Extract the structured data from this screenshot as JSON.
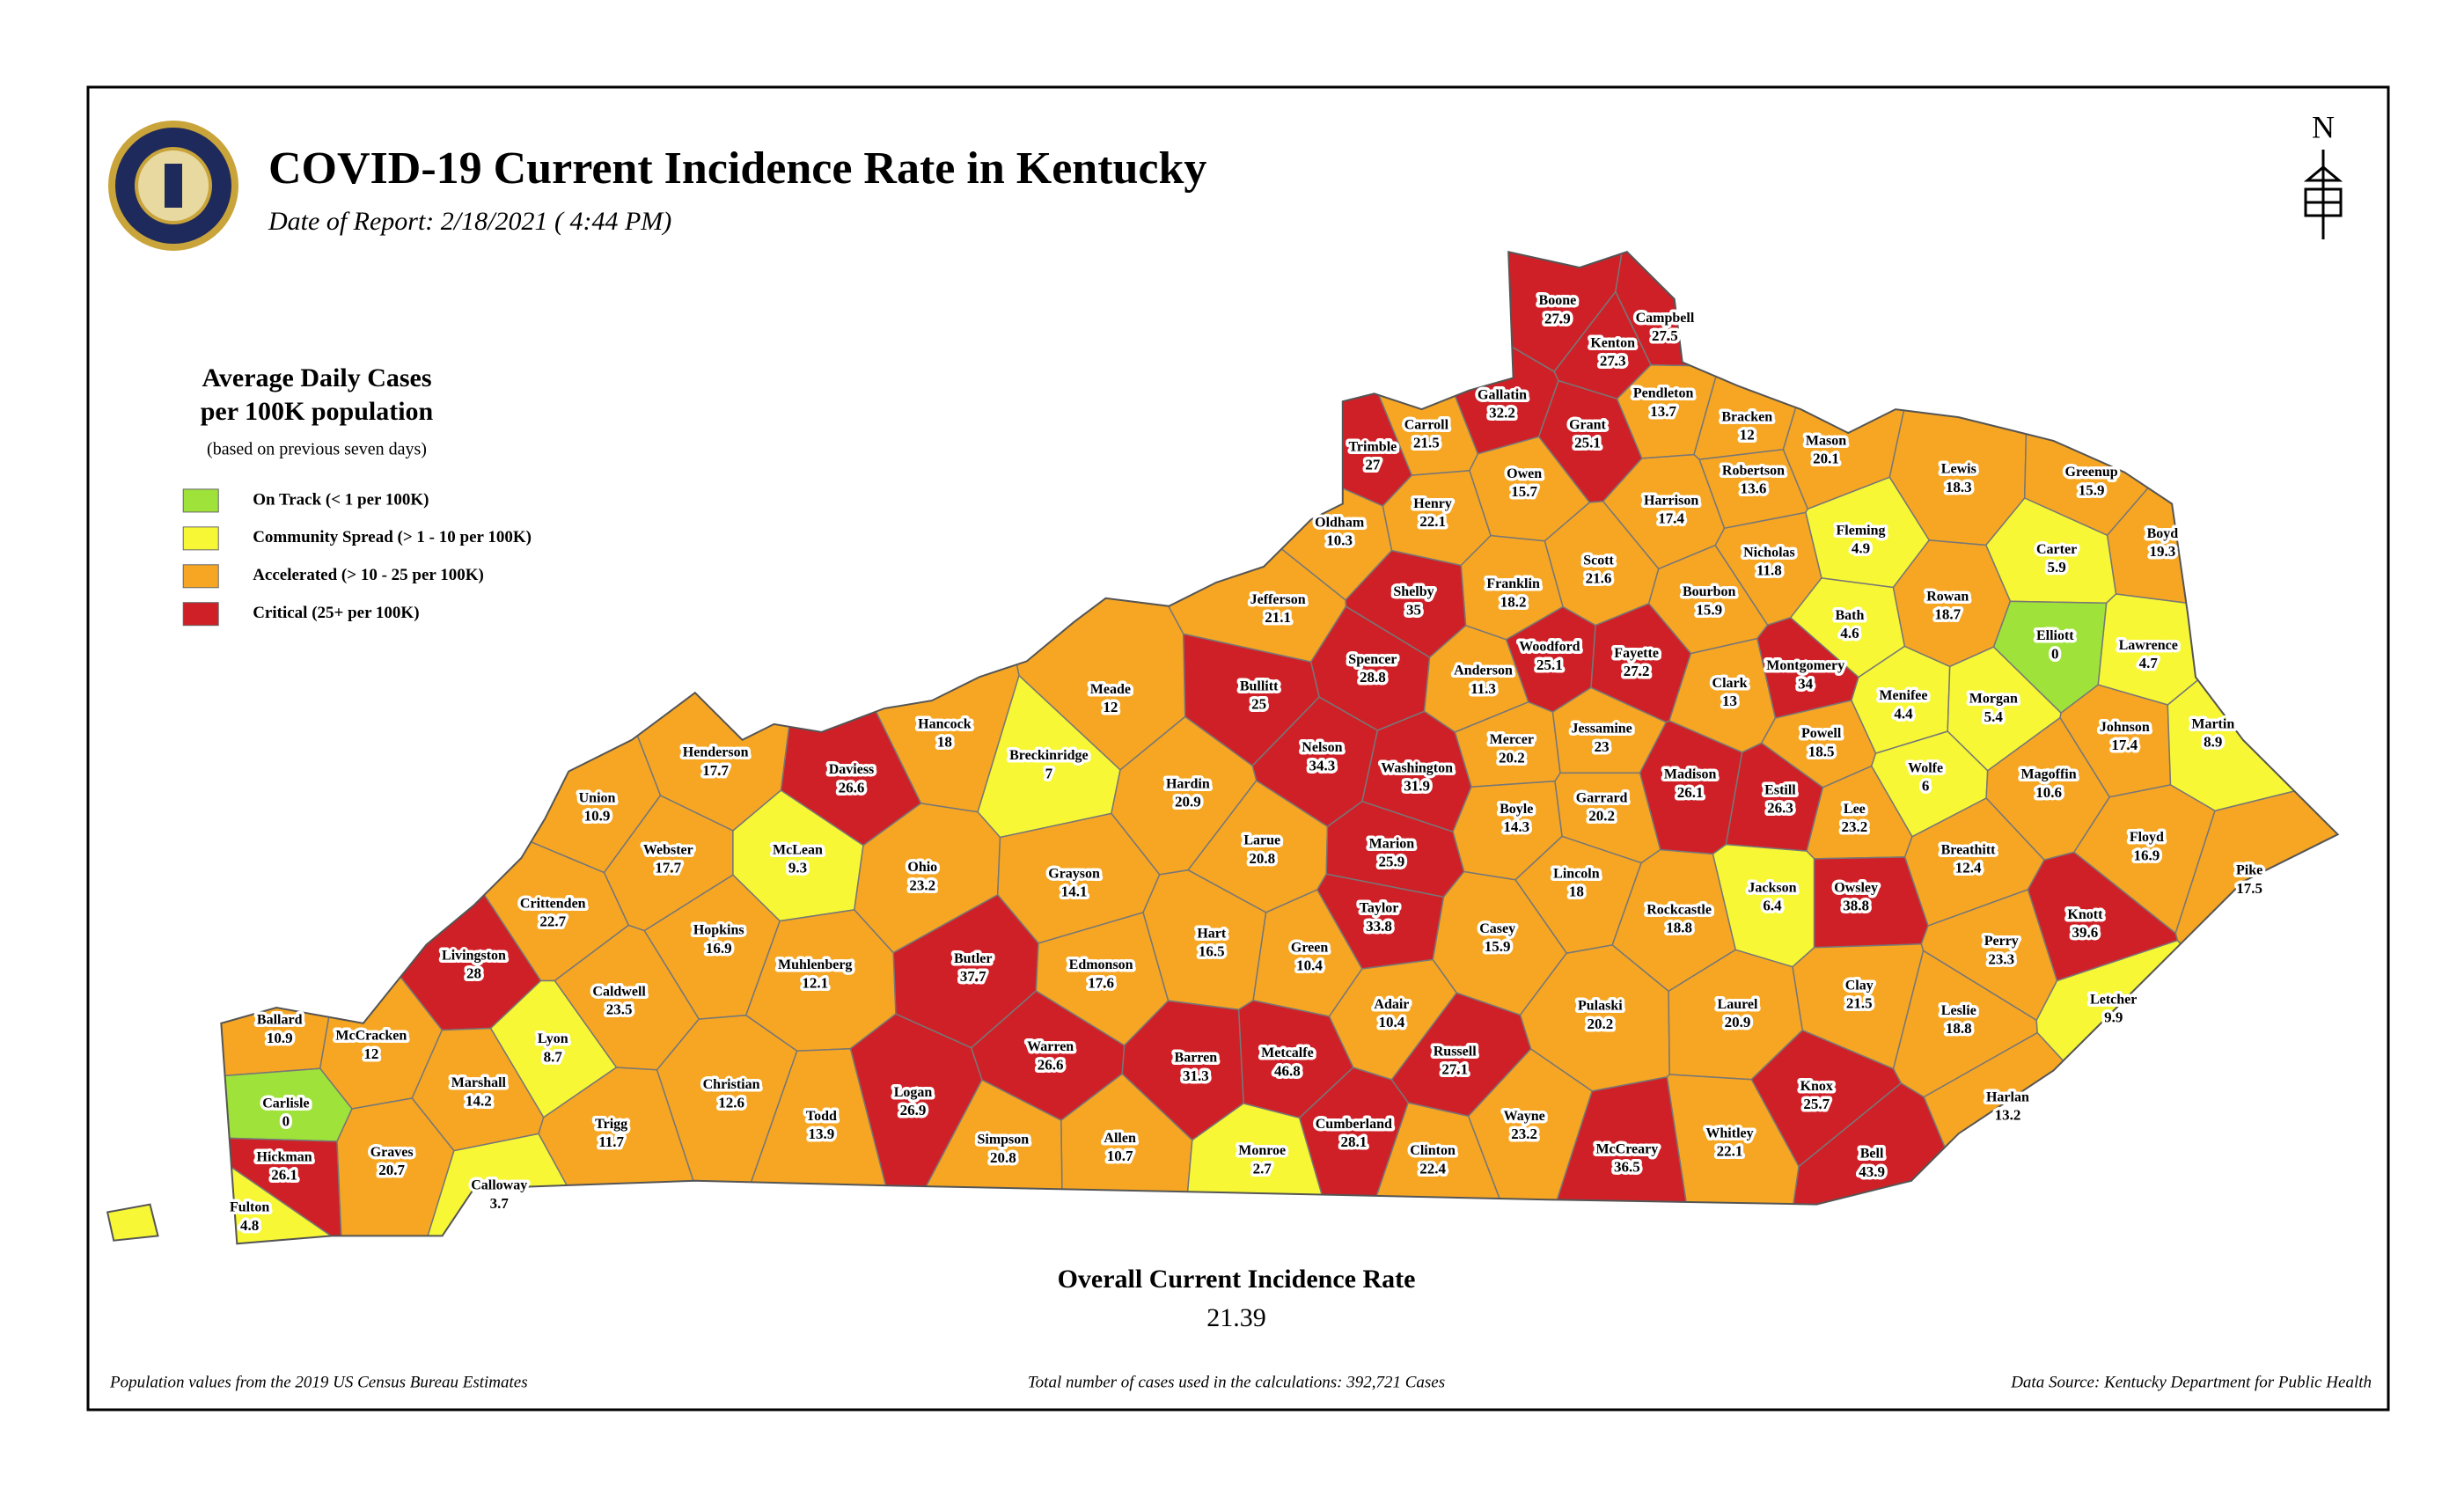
{
  "header": {
    "title": "COVID-19 Current Incidence Rate in Kentucky",
    "date_of_report": "Date of Report: 2/18/2021 ( 4:44 PM)"
  },
  "compass": "N",
  "legend": {
    "title_lines": [
      "Average Daily Cases",
      "per 100K population"
    ],
    "note": "(based on previous seven days)",
    "items": [
      {
        "label": "On Track (< 1 per 100K)",
        "color": "#9ee23a"
      },
      {
        "label": "Community Spread (> 1 - 10 per 100K)",
        "color": "#f7f736"
      },
      {
        "label": "Accelerated (> 10 - 25 per 100K)",
        "color": "#f6a623"
      },
      {
        "label": "Critical (25+ per 100K)",
        "color": "#cf2027"
      }
    ]
  },
  "counties": [
    {
      "name": "Boone",
      "value": 27.9,
      "color": "#cf2027"
    },
    {
      "name": "Campbell",
      "value": 27.5,
      "color": "#cf2027"
    },
    {
      "name": "Kenton",
      "value": 27.3,
      "color": "#cf2027"
    },
    {
      "name": "Gallatin",
      "value": 32.2,
      "color": "#cf2027"
    },
    {
      "name": "Grant",
      "value": 25.1,
      "color": "#cf2027"
    },
    {
      "name": "Pendleton",
      "value": 13.7,
      "color": "#f6a623"
    },
    {
      "name": "Bracken",
      "value": 12,
      "color": "#f6a623"
    },
    {
      "name": "Mason",
      "value": 20.1,
      "color": "#f6a623"
    },
    {
      "name": "Trimble",
      "value": 27,
      "color": "#cf2027"
    },
    {
      "name": "Carroll",
      "value": 21.5,
      "color": "#f6a623"
    },
    {
      "name": "Owen",
      "value": 15.7,
      "color": "#f6a623"
    },
    {
      "name": "Robertson",
      "value": 13.6,
      "color": "#f6a623"
    },
    {
      "name": "Lewis",
      "value": 18.3,
      "color": "#f6a623"
    },
    {
      "name": "Greenup",
      "value": 15.9,
      "color": "#f6a623"
    },
    {
      "name": "Boyd",
      "value": 19.3,
      "color": "#f6a623"
    },
    {
      "name": "Henry",
      "value": 22.1,
      "color": "#f6a623"
    },
    {
      "name": "Oldham",
      "value": 10.3,
      "color": "#f6a623"
    },
    {
      "name": "Harrison",
      "value": 17.4,
      "color": "#f6a623"
    },
    {
      "name": "Fleming",
      "value": 4.9,
      "color": "#f7f736"
    },
    {
      "name": "Carter",
      "value": 5.9,
      "color": "#f7f736"
    },
    {
      "name": "Nicholas",
      "value": 11.8,
      "color": "#f6a623"
    },
    {
      "name": "Scott",
      "value": 21.6,
      "color": "#f6a623"
    },
    {
      "name": "Franklin",
      "value": 18.2,
      "color": "#f6a623"
    },
    {
      "name": "Shelby",
      "value": 35,
      "color": "#cf2027"
    },
    {
      "name": "Jefferson",
      "value": 21.1,
      "color": "#f6a623"
    },
    {
      "name": "Bourbon",
      "value": 15.9,
      "color": "#f6a623"
    },
    {
      "name": "Rowan",
      "value": 18.7,
      "color": "#f6a623"
    },
    {
      "name": "Bath",
      "value": 4.6,
      "color": "#f7f736"
    },
    {
      "name": "Elliott",
      "value": 0,
      "color": "#9ee23a"
    },
    {
      "name": "Lawrence",
      "value": 4.7,
      "color": "#f7f736"
    },
    {
      "name": "Woodford",
      "value": 25.1,
      "color": "#cf2027"
    },
    {
      "name": "Fayette",
      "value": 27.2,
      "color": "#cf2027"
    },
    {
      "name": "Montgomery",
      "value": 34,
      "color": "#cf2027"
    },
    {
      "name": "Spencer",
      "value": 28.8,
      "color": "#cf2027"
    },
    {
      "name": "Anderson",
      "value": 11.3,
      "color": "#f6a623"
    },
    {
      "name": "Clark",
      "value": 13,
      "color": "#f6a623"
    },
    {
      "name": "Bullitt",
      "value": 25,
      "color": "#cf2027"
    },
    {
      "name": "Meade",
      "value": 12,
      "color": "#f6a623"
    },
    {
      "name": "Menifee",
      "value": 4.4,
      "color": "#f7f736"
    },
    {
      "name": "Morgan",
      "value": 5.4,
      "color": "#f7f736"
    },
    {
      "name": "Johnson",
      "value": 17.4,
      "color": "#f6a623"
    },
    {
      "name": "Martin",
      "value": 8.9,
      "color": "#f7f736"
    },
    {
      "name": "Hancock",
      "value": 18,
      "color": "#f6a623"
    },
    {
      "name": "Mercer",
      "value": 20.2,
      "color": "#f6a623"
    },
    {
      "name": "Jessamine",
      "value": 23,
      "color": "#f6a623"
    },
    {
      "name": "Powell",
      "value": 18.5,
      "color": "#f6a623"
    },
    {
      "name": "Breckinridge",
      "value": 7,
      "color": "#f7f736"
    },
    {
      "name": "Henderson",
      "value": 17.7,
      "color": "#f6a623"
    },
    {
      "name": "Daviess",
      "value": 26.6,
      "color": "#cf2027"
    },
    {
      "name": "Nelson",
      "value": 34.3,
      "color": "#cf2027"
    },
    {
      "name": "Washington",
      "value": 31.9,
      "color": "#cf2027"
    },
    {
      "name": "Madison",
      "value": 26.1,
      "color": "#cf2027"
    },
    {
      "name": "Estill",
      "value": 26.3,
      "color": "#cf2027"
    },
    {
      "name": "Wolfe",
      "value": 6,
      "color": "#f7f736"
    },
    {
      "name": "Magoffin",
      "value": 10.6,
      "color": "#f6a623"
    },
    {
      "name": "Hardin",
      "value": 20.9,
      "color": "#f6a623"
    },
    {
      "name": "Union",
      "value": 10.9,
      "color": "#f6a623"
    },
    {
      "name": "Boyle",
      "value": 14.3,
      "color": "#f6a623"
    },
    {
      "name": "Garrard",
      "value": 20.2,
      "color": "#f6a623"
    },
    {
      "name": "Lee",
      "value": 23.2,
      "color": "#f6a623"
    },
    {
      "name": "Breathitt",
      "value": 12.4,
      "color": "#f6a623"
    },
    {
      "name": "Floyd",
      "value": 16.9,
      "color": "#f6a623"
    },
    {
      "name": "Webster",
      "value": 17.7,
      "color": "#f6a623"
    },
    {
      "name": "McLean",
      "value": 9.3,
      "color": "#f7f736"
    },
    {
      "name": "Larue",
      "value": 20.8,
      "color": "#f6a623"
    },
    {
      "name": "Marion",
      "value": 25.9,
      "color": "#cf2027"
    },
    {
      "name": "Ohio",
      "value": 23.2,
      "color": "#f6a623"
    },
    {
      "name": "Grayson",
      "value": 14.1,
      "color": "#f6a623"
    },
    {
      "name": "Lincoln",
      "value": 18,
      "color": "#f6a623"
    },
    {
      "name": "Jackson",
      "value": 6.4,
      "color": "#f7f736"
    },
    {
      "name": "Owsley",
      "value": 38.8,
      "color": "#cf2027"
    },
    {
      "name": "Pike",
      "value": 17.5,
      "color": "#f6a623"
    },
    {
      "name": "Knott",
      "value": 39.6,
      "color": "#cf2027"
    },
    {
      "name": "Crittenden",
      "value": 22.7,
      "color": "#f6a623"
    },
    {
      "name": "Taylor",
      "value": 33.8,
      "color": "#cf2027"
    },
    {
      "name": "Rockcastle",
      "value": 18.8,
      "color": "#f6a623"
    },
    {
      "name": "Casey",
      "value": 15.9,
      "color": "#f6a623"
    },
    {
      "name": "Hopkins",
      "value": 16.9,
      "color": "#f6a623"
    },
    {
      "name": "Hart",
      "value": 16.5,
      "color": "#f6a623"
    },
    {
      "name": "Perry",
      "value": 23.3,
      "color": "#f6a623"
    },
    {
      "name": "Livingston",
      "value": 28,
      "color": "#cf2027"
    },
    {
      "name": "Butler",
      "value": 37.7,
      "color": "#cf2027"
    },
    {
      "name": "Edmonson",
      "value": 17.6,
      "color": "#f6a623"
    },
    {
      "name": "Green",
      "value": 10.4,
      "color": "#f6a623"
    },
    {
      "name": "Muhlenberg",
      "value": 12.1,
      "color": "#f6a623"
    },
    {
      "name": "Caldwell",
      "value": 23.5,
      "color": "#f6a623"
    },
    {
      "name": "Clay",
      "value": 21.5,
      "color": "#f6a623"
    },
    {
      "name": "Leslie",
      "value": 18.8,
      "color": "#f6a623"
    },
    {
      "name": "Letcher",
      "value": 9.9,
      "color": "#f7f736"
    },
    {
      "name": "Adair",
      "value": 10.4,
      "color": "#f6a623"
    },
    {
      "name": "Pulaski",
      "value": 20.2,
      "color": "#f6a623"
    },
    {
      "name": "Laurel",
      "value": 20.9,
      "color": "#f6a623"
    },
    {
      "name": "Ballard",
      "value": 10.9,
      "color": "#f6a623"
    },
    {
      "name": "McCracken",
      "value": 12,
      "color": "#f6a623"
    },
    {
      "name": "Lyon",
      "value": 8.7,
      "color": "#f7f736"
    },
    {
      "name": "Warren",
      "value": 26.6,
      "color": "#cf2027"
    },
    {
      "name": "Metcalfe",
      "value": 46.8,
      "color": "#cf2027"
    },
    {
      "name": "Barren",
      "value": 31.3,
      "color": "#cf2027"
    },
    {
      "name": "Russell",
      "value": 27.1,
      "color": "#cf2027"
    },
    {
      "name": "Marshall",
      "value": 14.2,
      "color": "#f6a623"
    },
    {
      "name": "Christian",
      "value": 12.6,
      "color": "#f6a623"
    },
    {
      "name": "Logan",
      "value": 26.9,
      "color": "#cf2027"
    },
    {
      "name": "Knox",
      "value": 25.7,
      "color": "#cf2027"
    },
    {
      "name": "Harlan",
      "value": 13.2,
      "color": "#f6a623"
    },
    {
      "name": "Carlisle",
      "value": 0,
      "color": "#9ee23a"
    },
    {
      "name": "Trigg",
      "value": 11.7,
      "color": "#f6a623"
    },
    {
      "name": "Todd",
      "value": 13.9,
      "color": "#f6a623"
    },
    {
      "name": "Cumberland",
      "value": 28.1,
      "color": "#cf2027"
    },
    {
      "name": "Whitley",
      "value": 22.1,
      "color": "#f6a623"
    },
    {
      "name": "Wayne",
      "value": 23.2,
      "color": "#f6a623"
    },
    {
      "name": "Allen",
      "value": 10.7,
      "color": "#f6a623"
    },
    {
      "name": "Simpson",
      "value": 20.8,
      "color": "#f6a623"
    },
    {
      "name": "Clinton",
      "value": 22.4,
      "color": "#f6a623"
    },
    {
      "name": "McCreary",
      "value": 36.5,
      "color": "#cf2027"
    },
    {
      "name": "Hickman",
      "value": 26.1,
      "color": "#cf2027"
    },
    {
      "name": "Graves",
      "value": 20.7,
      "color": "#f6a623"
    },
    {
      "name": "Bell",
      "value": 43.9,
      "color": "#cf2027"
    },
    {
      "name": "Monroe",
      "value": 2.7,
      "color": "#f7f736"
    },
    {
      "name": "Calloway",
      "value": 3.7,
      "color": "#f7f736"
    },
    {
      "name": "Fulton",
      "value": 4.8,
      "color": "#f7f736"
    }
  ],
  "overall": {
    "label": "Overall Current Incidence Rate",
    "value": 21.39
  },
  "footer": {
    "left": "Population values from the 2019 US Census Bureau Estimates",
    "center": "Total number of cases used in the calculations: 392,721 Cases",
    "right": "Data Source: Kentucky Department for Public Health"
  }
}
